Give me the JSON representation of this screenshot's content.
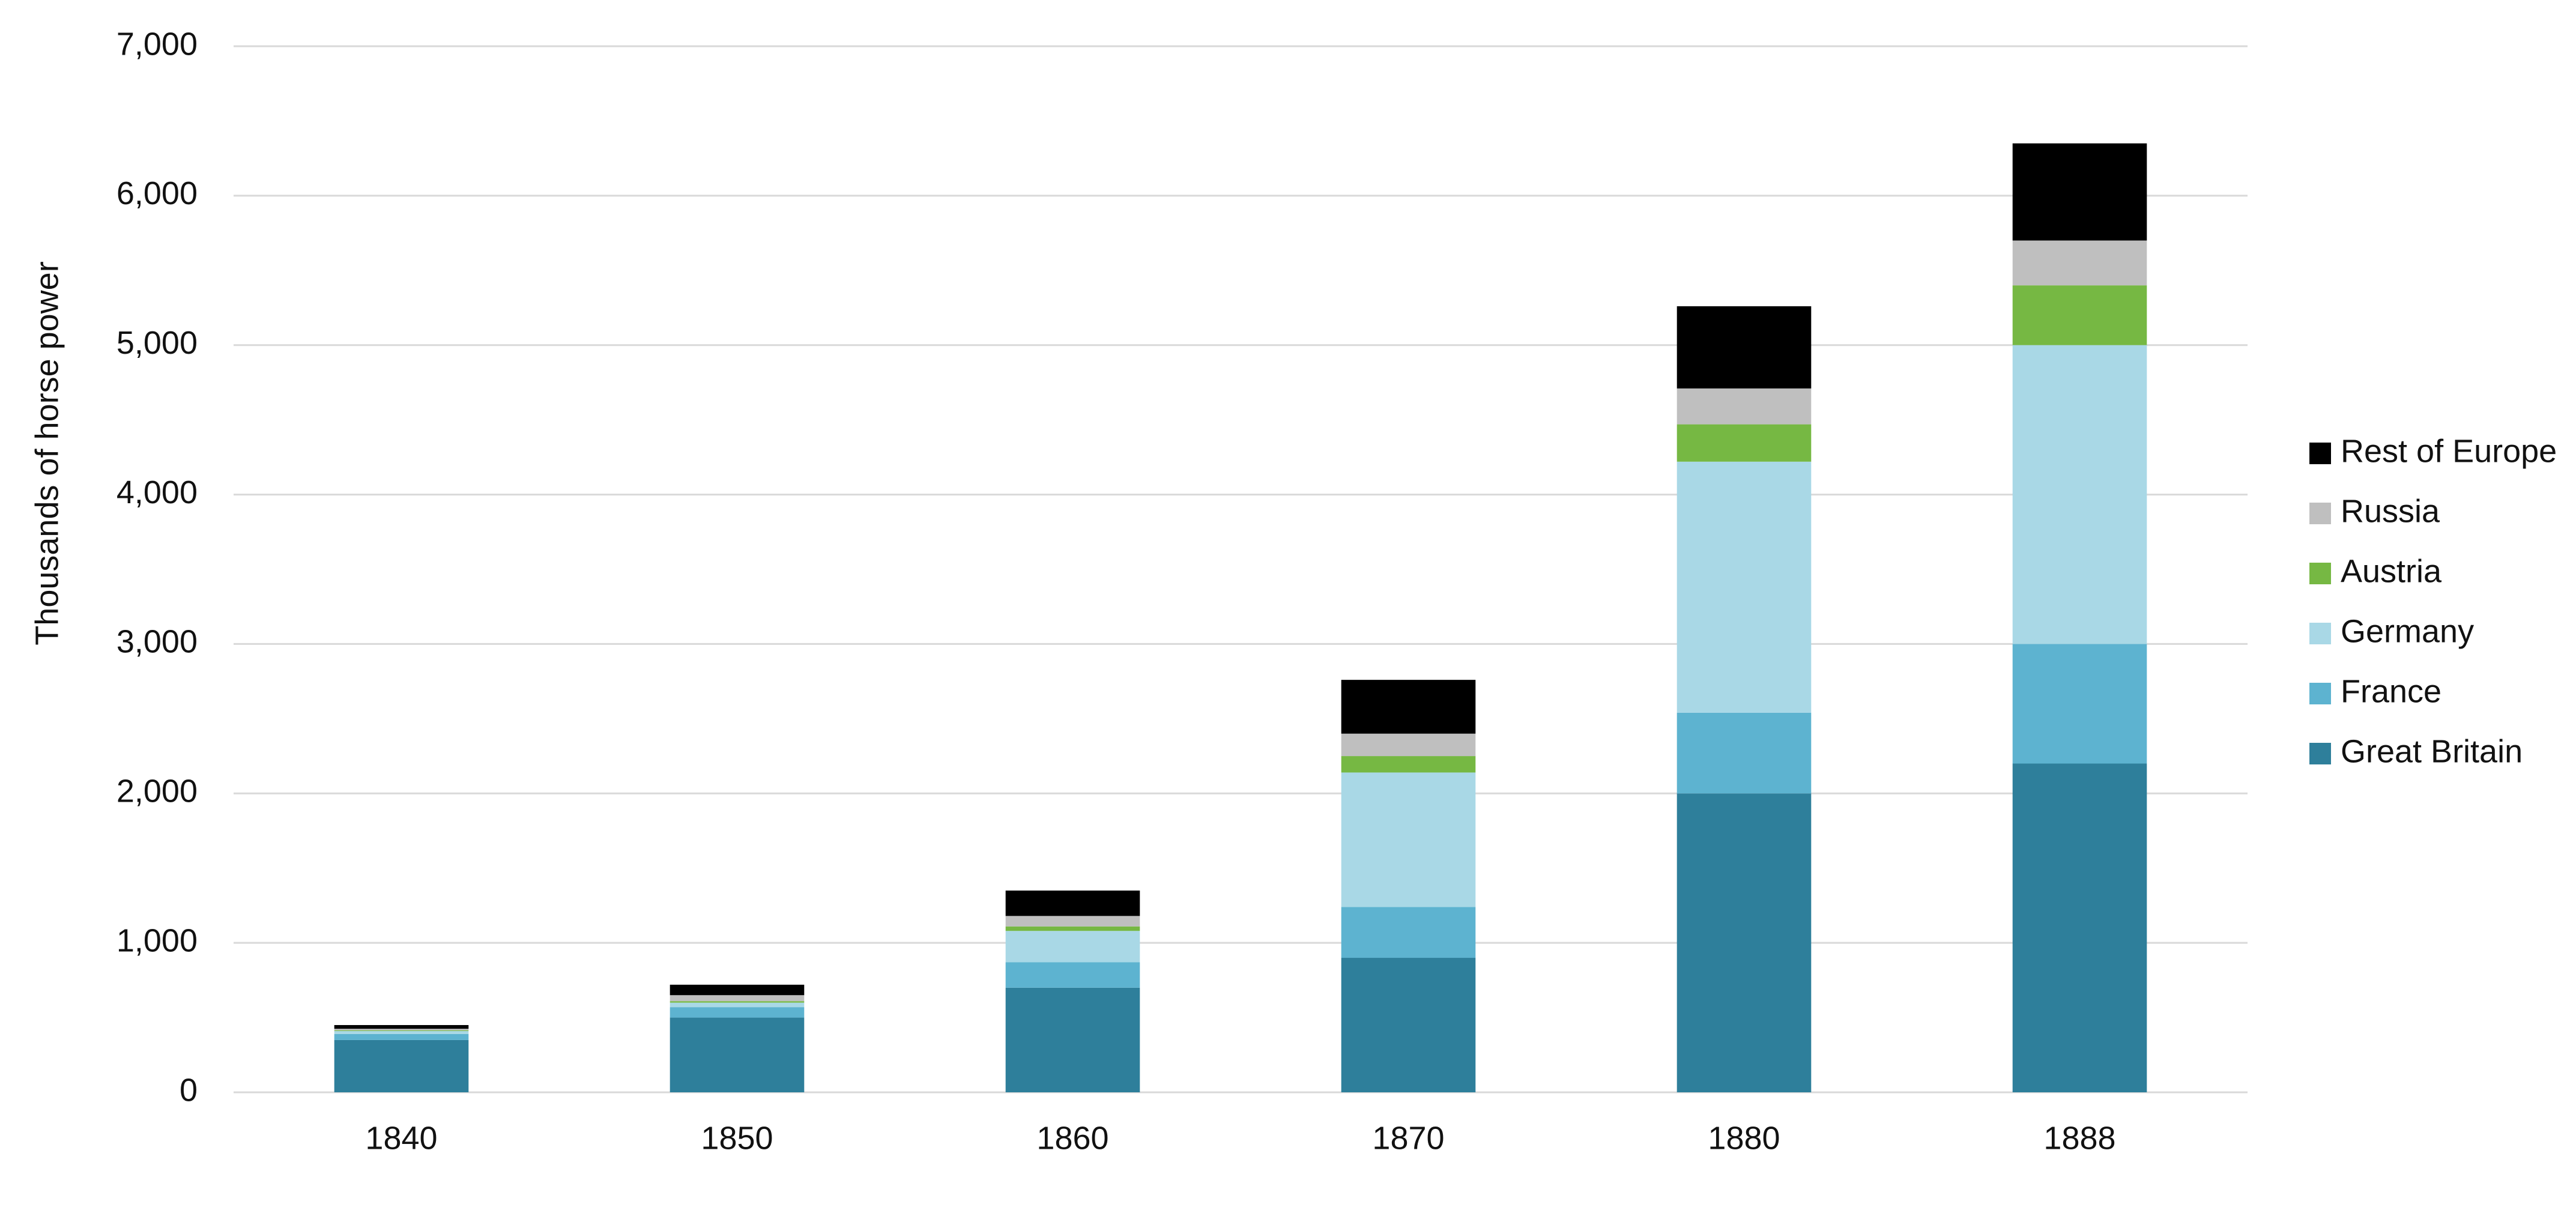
{
  "chart_data": {
    "type": "stacked_bar",
    "y_label": "Thousands of horse power",
    "categories": [
      "1840",
      "1850",
      "1860",
      "1870",
      "1880",
      "1888"
    ],
    "series": [
      {
        "name": "Great Britain",
        "color": "#2e7f9b",
        "values": [
          350,
          500,
          700,
          900,
          2000,
          2200
        ]
      },
      {
        "name": "France",
        "color": "#5db3d0",
        "values": [
          40,
          70,
          170,
          340,
          540,
          800
        ]
      },
      {
        "name": "Germany",
        "color": "#a9d8e6",
        "values": [
          20,
          30,
          210,
          900,
          1680,
          2000
        ]
      },
      {
        "name": "Austria",
        "color": "#76b843",
        "values": [
          5,
          10,
          30,
          110,
          250,
          400
        ]
      },
      {
        "name": "Russia",
        "color": "#bfbfbf",
        "values": [
          10,
          40,
          70,
          150,
          240,
          300
        ]
      },
      {
        "name": "Rest of Europe",
        "color": "#000000",
        "values": [
          25,
          70,
          170,
          360,
          550,
          650
        ]
      }
    ],
    "ylim": [
      0,
      7000
    ],
    "yticks": [
      0,
      {
        "value": 1000,
        "label": "1,000"
      },
      {
        "value": 2000,
        "label": "2,000"
      },
      {
        "value": 3000,
        "label": "3,000"
      },
      {
        "value": 4000,
        "label": "4,000"
      },
      {
        "value": 5000,
        "label": "5,000"
      },
      {
        "value": 6000,
        "label": "6,000"
      },
      {
        "value": 7000,
        "label": "7,000"
      }
    ],
    "grid": true,
    "legend": "right"
  }
}
